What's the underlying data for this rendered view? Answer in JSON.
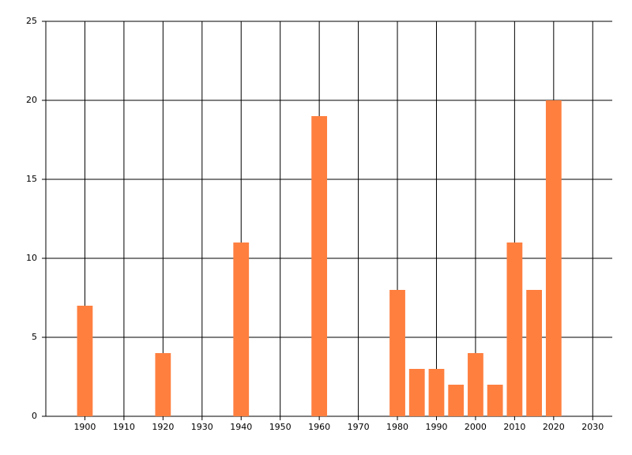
{
  "chart_data": {
    "type": "bar",
    "x": [
      1900,
      1920,
      1940,
      1960,
      1980,
      1985,
      1990,
      1995,
      2000,
      2005,
      2010,
      2015,
      2020
    ],
    "values": [
      7,
      4,
      11,
      19,
      8,
      3,
      3,
      2,
      4,
      2,
      11,
      8,
      20
    ],
    "color": "#ff7f3f",
    "xlim": [
      1890,
      2035
    ],
    "xticks": [
      1900,
      1910,
      1920,
      1930,
      1940,
      1950,
      1960,
      1970,
      1980,
      1990,
      2000,
      2010,
      2020,
      2030
    ],
    "ylim": [
      0,
      25
    ],
    "yticks": [
      0,
      5,
      10,
      15,
      20,
      25
    ],
    "grid": true
  }
}
